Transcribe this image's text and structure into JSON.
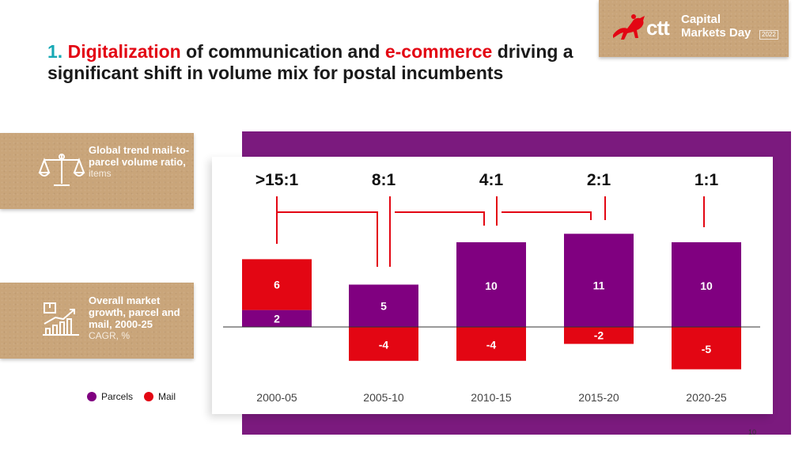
{
  "header": {
    "title_num": "1.",
    "title_kw1": "Digitalization",
    "title_mid": " of communication and ",
    "title_kw2": "e-commerce",
    "title_rest": " driving a significant shift in volume mix for postal incumbents"
  },
  "logo": {
    "brand": "ctt",
    "line1": "Capital",
    "line2": "Markets Day",
    "badge": "2022"
  },
  "side": {
    "ratio_box": {
      "bold": "Global trend mail-to-parcel volume ratio,",
      "sub": "items",
      "icon": "scales-icon"
    },
    "growth_box": {
      "bold": "Overall market growth, parcel and mail, 2000-25",
      "sub": "CAGR, %",
      "icon": "parcel-chart-icon"
    }
  },
  "legend": {
    "parcels": "Parcels",
    "mail": "Mail"
  },
  "colors": {
    "parcels": "#800080",
    "mail": "#e30613",
    "frame": "#7b1a7e",
    "kraft": "#c9a57a"
  },
  "chart_data": {
    "type": "bar",
    "stacked": true,
    "categories": [
      "2000-05",
      "2005-10",
      "2010-15",
      "2015-20",
      "2020-25"
    ],
    "ratios": [
      ">15:1",
      "8:1",
      "4:1",
      "2:1",
      "1:1"
    ],
    "series": [
      {
        "name": "Parcels",
        "values": [
          2,
          5,
          10,
          11,
          10
        ]
      },
      {
        "name": "Mail",
        "values": [
          6,
          -4,
          -4,
          -2,
          -5
        ]
      }
    ],
    "ylim": [
      -5,
      11
    ]
  },
  "page_number": "10"
}
